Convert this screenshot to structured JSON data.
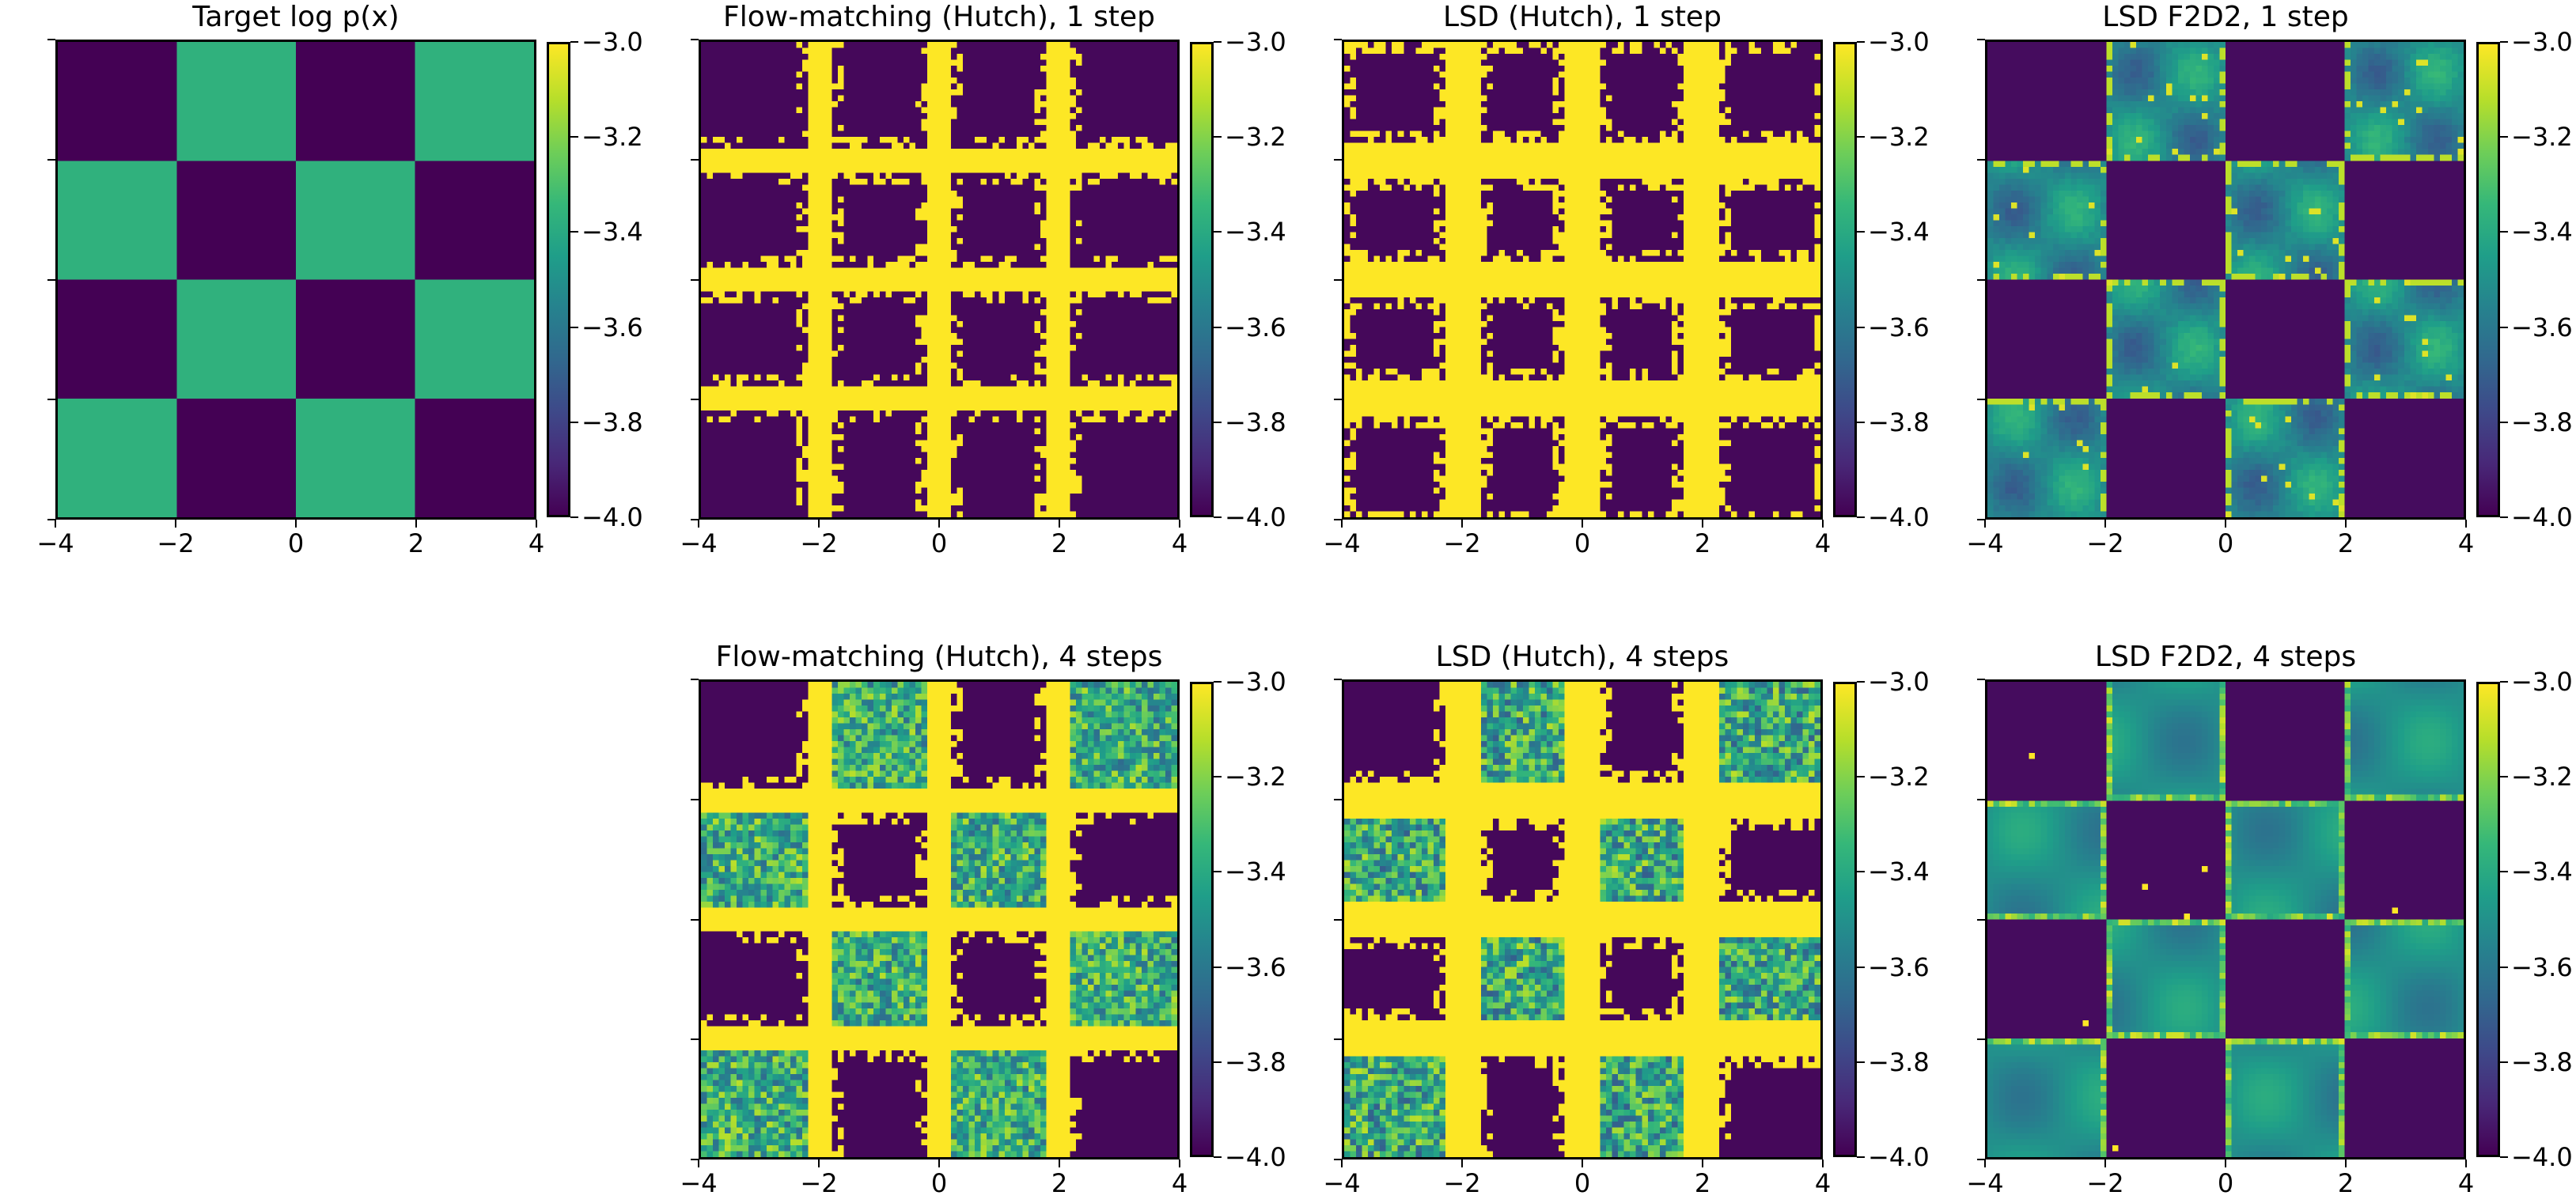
{
  "figure": {
    "colormap": "viridis",
    "colors": {
      "low": "#440154",
      "mid": "#21918c",
      "high": "#fde725"
    }
  },
  "chart_data": [
    {
      "id": "target",
      "type": "heatmap",
      "title": "Target log p(x)",
      "xlim": [
        -4,
        4
      ],
      "ylim": [
        -4,
        4
      ],
      "xticks": [
        "−4",
        "−2",
        "0",
        "2",
        "4"
      ],
      "yticks": [
        "4",
        "2",
        "0",
        "−2",
        "−4"
      ],
      "colorbar": {
        "range": [
          -4.0,
          -3.0
        ],
        "ticks": [
          "−3.0",
          "−3.2",
          "−3.4",
          "−3.6",
          "−3.8",
          "−4.0"
        ]
      },
      "grid_note": "8x8 coarse cells, rows top (y=4) to bottom (y=-4), values = log p(x)",
      "values": [
        [
          -4.0,
          -4.0,
          -3.36,
          -3.36,
          -4.0,
          -4.0,
          -3.36,
          -3.36
        ],
        [
          -4.0,
          -4.0,
          -3.36,
          -3.36,
          -4.0,
          -4.0,
          -3.36,
          -3.36
        ],
        [
          -3.36,
          -3.36,
          -4.0,
          -4.0,
          -3.36,
          -3.36,
          -4.0,
          -4.0
        ],
        [
          -3.36,
          -3.36,
          -4.0,
          -4.0,
          -3.36,
          -3.36,
          -4.0,
          -4.0
        ],
        [
          -4.0,
          -4.0,
          -3.36,
          -3.36,
          -4.0,
          -4.0,
          -3.36,
          -3.36
        ],
        [
          -4.0,
          -4.0,
          -3.36,
          -3.36,
          -4.0,
          -4.0,
          -3.36,
          -3.36
        ],
        [
          -3.36,
          -3.36,
          -4.0,
          -4.0,
          -3.36,
          -3.36,
          -4.0,
          -4.0
        ],
        [
          -3.36,
          -3.36,
          -4.0,
          -4.0,
          -3.36,
          -3.36,
          -4.0,
          -4.0
        ]
      ]
    },
    {
      "id": "fm_1",
      "type": "heatmap",
      "title": "Flow-matching (Hutch), 1 step",
      "xlim": [
        -4,
        4
      ],
      "ylim": [
        -4,
        4
      ],
      "xticks": [
        "−4",
        "−2",
        "0",
        "2",
        "4"
      ],
      "yticks": [
        "4",
        "2",
        "0",
        "−2",
        "−4"
      ],
      "colorbar": {
        "range": [
          -4.0,
          -3.0
        ],
        "ticks": [
          "−3.0",
          "−3.2",
          "−3.4",
          "−3.6",
          "−3.8",
          "−4.0"
        ]
      },
      "pattern": "dark squares separated by saturated yellow bands along x=-2,0,2 and y=-2,0,2",
      "style": "bands",
      "band_width": 0.18
    },
    {
      "id": "lsd_hutch_1",
      "type": "heatmap",
      "title": "LSD (Hutch), 1 step",
      "xlim": [
        -4,
        4
      ],
      "ylim": [
        -4,
        4
      ],
      "xticks": [
        "−4",
        "−2",
        "0",
        "2",
        "4"
      ],
      "yticks": [
        "4",
        "2",
        "0",
        "−2",
        "−4"
      ],
      "colorbar": {
        "range": [
          -4.0,
          -3.0
        ],
        "ticks": [
          "−3.0",
          "−3.2",
          "−3.4",
          "−3.6",
          "−3.8",
          "−4.0"
        ]
      },
      "pattern": "dark rounded squares inside every cell surrounded by wide yellow regions",
      "style": "wideband",
      "band_width": 0.3
    },
    {
      "id": "f2d2_1",
      "type": "heatmap",
      "title": "LSD F2D2, 1 step",
      "xlim": [
        -4,
        4
      ],
      "ylim": [
        -4,
        4
      ],
      "xticks": [
        "−4",
        "−2",
        "0",
        "2",
        "4"
      ],
      "yticks": [
        "4",
        "2",
        "0",
        "−2",
        "−4"
      ],
      "colorbar": {
        "range": [
          -4.0,
          -3.0
        ],
        "ticks": [
          "−3.0",
          "−3.2",
          "−3.4",
          "−3.6",
          "−3.8",
          "−4.0"
        ]
      },
      "pattern": "checkerboard recovered; high-density squares ~ -3.4 with yellow blotches",
      "style": "smooth"
    },
    {
      "id": "fm_4",
      "type": "heatmap",
      "title": "Flow-matching (Hutch), 4 steps",
      "xlim": [
        -4,
        4
      ],
      "ylim": [
        -4,
        4
      ],
      "xticks": [
        "−4",
        "−2",
        "0",
        "2",
        "4"
      ],
      "yticks": [
        "4",
        "2",
        "0",
        "−2",
        "−4"
      ],
      "colorbar": {
        "range": [
          -4.0,
          -3.0
        ],
        "ticks": [
          "−3.0",
          "−3.2",
          "−3.4",
          "−3.6",
          "−3.8",
          "−4.0"
        ]
      },
      "pattern": "noisy green checkerboard squares with yellow bands along grid lines",
      "style": "noisy_bands",
      "band_width": 0.18
    },
    {
      "id": "lsd_hutch_4",
      "type": "heatmap",
      "title": "LSD (Hutch), 4 steps",
      "xlim": [
        -4,
        4
      ],
      "ylim": [
        -4,
        4
      ],
      "xticks": [
        "−4",
        "−2",
        "0",
        "2",
        "4"
      ],
      "yticks": [
        "4",
        "2",
        "0",
        "−2",
        "−4"
      ],
      "colorbar": {
        "range": [
          -4.0,
          -3.0
        ],
        "ticks": [
          "−3.0",
          "−3.2",
          "−3.4",
          "−3.6",
          "−3.8",
          "−4.0"
        ]
      },
      "pattern": "noisy green squares, dark low-density squares shrunken, broad yellow bands",
      "style": "noisy_wideband",
      "band_width": 0.3
    },
    {
      "id": "f2d2_4",
      "type": "heatmap",
      "title": "LSD F2D2, 4 steps",
      "xlim": [
        -4,
        4
      ],
      "ylim": [
        -4,
        4
      ],
      "xticks": [
        "−4",
        "−2",
        "0",
        "2",
        "4"
      ],
      "yticks": [
        "4",
        "2",
        "0",
        "−2",
        "−4"
      ],
      "colorbar": {
        "range": [
          -4.0,
          -3.0
        ],
        "ticks": [
          "−3.0",
          "−3.2",
          "−3.4",
          "−3.6",
          "−3.8",
          "−4.0"
        ]
      },
      "pattern": "clean checkerboard, high squares ~ -3.4 with yellow edges",
      "style": "smooth_clean"
    }
  ]
}
